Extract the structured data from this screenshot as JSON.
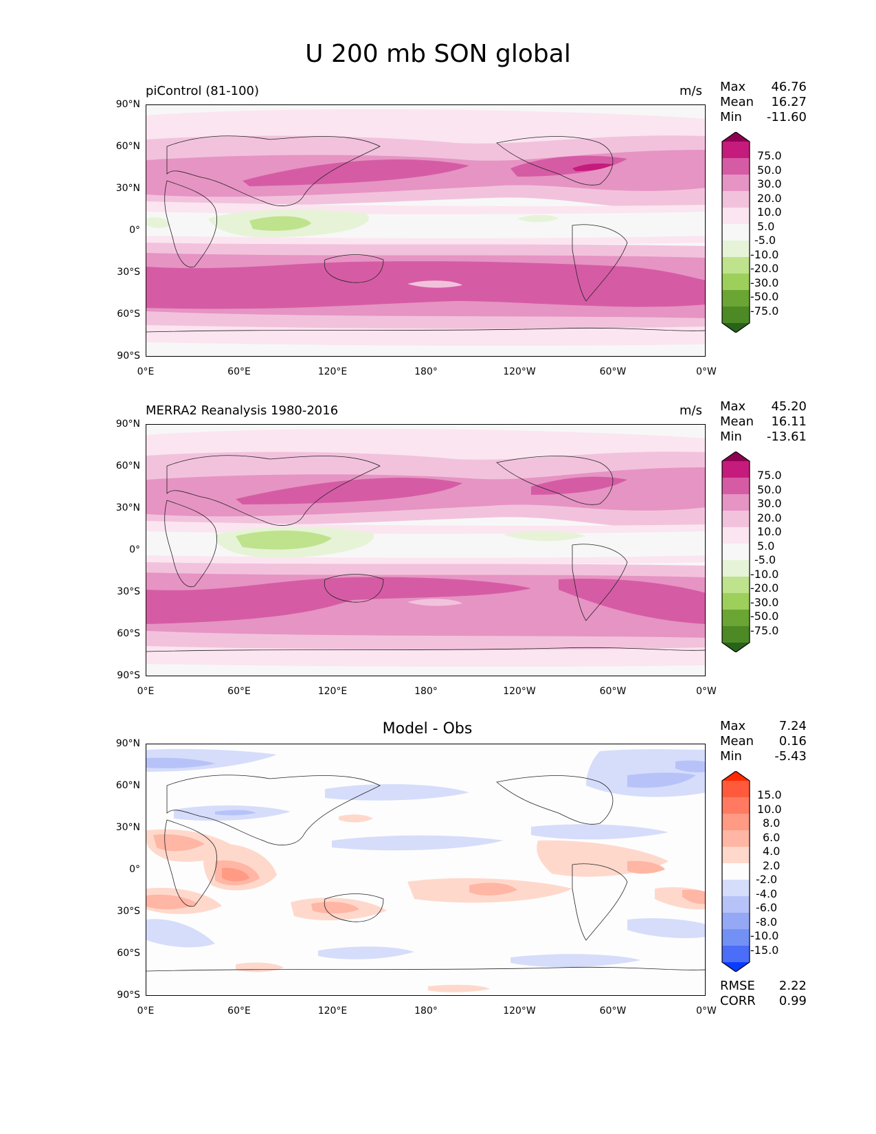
{
  "title": "U 200 mb SON global",
  "x_ticks": [
    "0°E",
    "60°E",
    "120°E",
    "180°",
    "120°W",
    "60°W",
    "0°W"
  ],
  "y_ticks": [
    "90°N",
    "60°N",
    "30°N",
    "0°",
    "30°S",
    "60°S",
    "90°S"
  ],
  "panels": [
    {
      "title": "piControl (81-100)",
      "units": "m/s",
      "stats": {
        "max_label": "Max",
        "max": "46.76",
        "mean_label": "Mean",
        "mean": "16.27",
        "min_label": "Min",
        "min": "-11.60"
      },
      "colorbar": {
        "levels": [
          "75.0",
          "50.0",
          "30.0",
          "20.0",
          "10.0",
          "5.0",
          "-5.0",
          "-10.0",
          "-20.0",
          "-30.0",
          "-50.0",
          "-75.0"
        ],
        "colors": [
          "#8e0152",
          "#c51b7d",
          "#d55ca4",
          "#e694c3",
          "#f2c2dd",
          "#fbe5f0",
          "#f7f7f7",
          "#e6f3d7",
          "#bfe28c",
          "#9dd05b",
          "#6ba534",
          "#4d8a26",
          "#276419"
        ]
      }
    },
    {
      "title": "MERRA2 Reanalysis 1980-2016",
      "units": "m/s",
      "stats": {
        "max_label": "Max",
        "max": "45.20",
        "mean_label": "Mean",
        "mean": "16.11",
        "min_label": "Min",
        "min": "-13.61"
      },
      "colorbar": {
        "levels": [
          "75.0",
          "50.0",
          "30.0",
          "20.0",
          "10.0",
          "5.0",
          "-5.0",
          "-10.0",
          "-20.0",
          "-30.0",
          "-50.0",
          "-75.0"
        ],
        "colors": [
          "#8e0152",
          "#c51b7d",
          "#d55ca4",
          "#e694c3",
          "#f2c2dd",
          "#fbe5f0",
          "#f7f7f7",
          "#e6f3d7",
          "#bfe28c",
          "#9dd05b",
          "#6ba534",
          "#4d8a26",
          "#276419"
        ]
      }
    },
    {
      "title": "Model - Obs",
      "units": "",
      "stats": {
        "max_label": "Max",
        "max": "7.24",
        "mean_label": "Mean",
        "mean": "0.16",
        "min_label": "Min",
        "min": "-5.43"
      },
      "extra": {
        "rmse_label": "RMSE",
        "rmse": "2.22",
        "corr_label": "CORR",
        "corr": "0.99"
      },
      "colorbar": {
        "levels": [
          "15.0",
          "10.0",
          "8.0",
          "6.0",
          "4.0",
          "2.0",
          "-2.0",
          "-4.0",
          "-6.0",
          "-8.0",
          "-10.0",
          "-15.0"
        ],
        "colors": [
          "#ff2a00",
          "#ff5a3c",
          "#ff7a60",
          "#ff9a84",
          "#ffb6a4",
          "#ffd8cc",
          "#fdfdfd",
          "#d6ddfb",
          "#b7c3f8",
          "#95a8f6",
          "#7390f5",
          "#4a6ef8",
          "#0a3cff"
        ]
      }
    }
  ],
  "chart_data": [
    {
      "type": "heatmap",
      "title": "piControl (81-100)",
      "variable": "U 200 mb SON",
      "units": "m/s",
      "x_range": [
        "0°E",
        "0°W"
      ],
      "y_range": [
        "90°S",
        "90°N"
      ],
      "max": 46.76,
      "mean": 16.27,
      "min": -11.6,
      "contour_levels": [
        -75,
        -50,
        -30,
        -20,
        -10,
        -5,
        5,
        10,
        20,
        30,
        50,
        75
      ],
      "features": [
        "subtropical jets near 30-40°N over Asia/Pacific and N. America (30-50 m/s)",
        "strong southern jet band 30-60°S (30-50 m/s)",
        "weak easterlies over Indian Ocean / Maritime continent near equator"
      ]
    },
    {
      "type": "heatmap",
      "title": "MERRA2 Reanalysis 1980-2016",
      "variable": "U 200 mb SON",
      "units": "m/s",
      "x_range": [
        "0°E",
        "0°W"
      ],
      "y_range": [
        "90°S",
        "90°N"
      ],
      "max": 45.2,
      "mean": 16.11,
      "min": -13.61,
      "contour_levels": [
        -75,
        -50,
        -30,
        -20,
        -10,
        -5,
        5,
        10,
        20,
        30,
        50,
        75
      ]
    },
    {
      "type": "heatmap",
      "title": "Model - Obs",
      "x_range": [
        "0°E",
        "0°W"
      ],
      "y_range": [
        "90°S",
        "90°N"
      ],
      "max": 7.24,
      "mean": 0.16,
      "min": -5.43,
      "rmse": 2.22,
      "corr": 0.99,
      "contour_levels": [
        -15,
        -10,
        -8,
        -6,
        -4,
        -2,
        2,
        4,
        6,
        8,
        10,
        15
      ]
    }
  ]
}
